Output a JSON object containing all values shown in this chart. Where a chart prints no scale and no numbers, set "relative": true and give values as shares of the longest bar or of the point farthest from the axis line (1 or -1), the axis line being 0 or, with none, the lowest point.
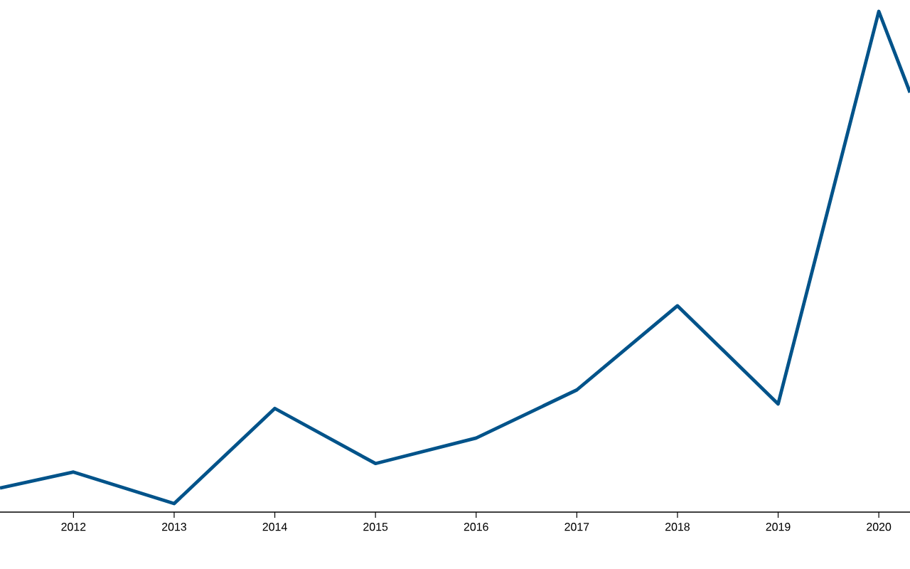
{
  "chart_data": {
    "type": "line",
    "relative": true,
    "x": [
      2011.27,
      2012,
      2013,
      2014,
      2015,
      2016,
      2017,
      2018,
      2019,
      2020,
      2020.31
    ],
    "series": [
      {
        "color": "#00538a",
        "values": [
          0.048,
          0.08,
          0.017,
          0.207,
          0.097,
          0.148,
          0.244,
          0.412,
          0.216,
          1,
          0.838
        ]
      }
    ],
    "xlim": [
      2011.27,
      2020.31
    ],
    "xticks": [
      2012,
      2013,
      2014,
      2015,
      2016,
      2017,
      2018,
      2019,
      2020
    ],
    "grid": false,
    "marker": "none",
    "line_style": "solid"
  }
}
